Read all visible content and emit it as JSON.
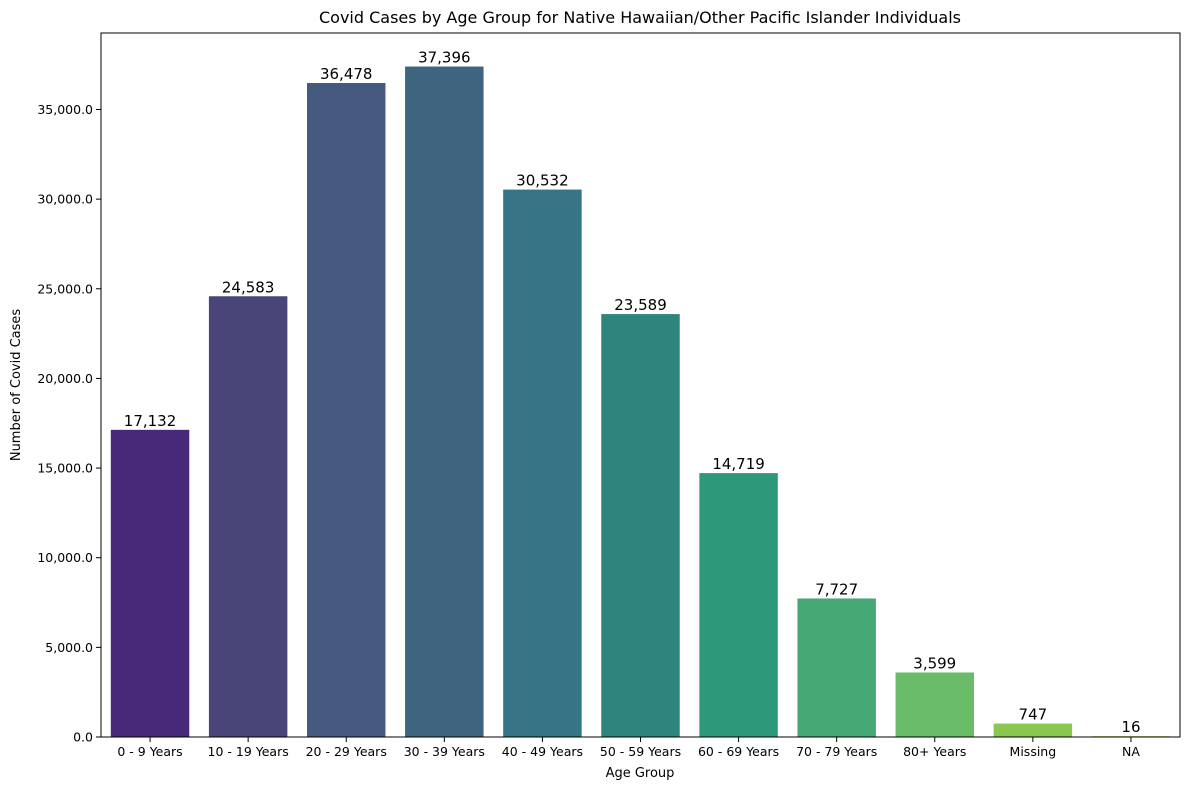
{
  "chart_data": {
    "type": "bar",
    "title": "Covid Cases by Age Group for Native Hawaiian/Other Pacific Islander Individuals",
    "xlabel": "Age Group",
    "ylabel": "Number of Covid Cases",
    "categories": [
      "0 - 9 Years",
      "10 - 19 Years",
      "20 - 29 Years",
      "30 - 39 Years",
      "40 - 49 Years",
      "50 - 59 Years",
      "60 - 69 Years",
      "70 - 79 Years",
      "80+ Years",
      "Missing",
      "NA"
    ],
    "values": [
      17132,
      24583,
      36478,
      37396,
      30532,
      23589,
      14719,
      7727,
      3599,
      747,
      16
    ],
    "value_labels": [
      "17,132",
      "24,583",
      "36,478",
      "37,396",
      "30,532",
      "23,589",
      "14,719",
      "7,727",
      "3,599",
      "747",
      "16"
    ],
    "colors": [
      "#482878",
      "#4a4579",
      "#46597f",
      "#3e6480",
      "#357585",
      "#2e857e",
      "#2e987b",
      "#46a975",
      "#6bbc68",
      "#8ac74f",
      "#b0d845"
    ],
    "ylim": [
      0,
      39266
    ],
    "yticks": [
      0,
      5000,
      10000,
      15000,
      20000,
      25000,
      30000,
      35000
    ],
    "ytick_labels": [
      "0.0",
      "5,000.0",
      "10,000.0",
      "15,000.0",
      "20,000.0",
      "25,000.0",
      "30,000.0",
      "35,000.0"
    ],
    "grid": false,
    "legend": "none"
  }
}
